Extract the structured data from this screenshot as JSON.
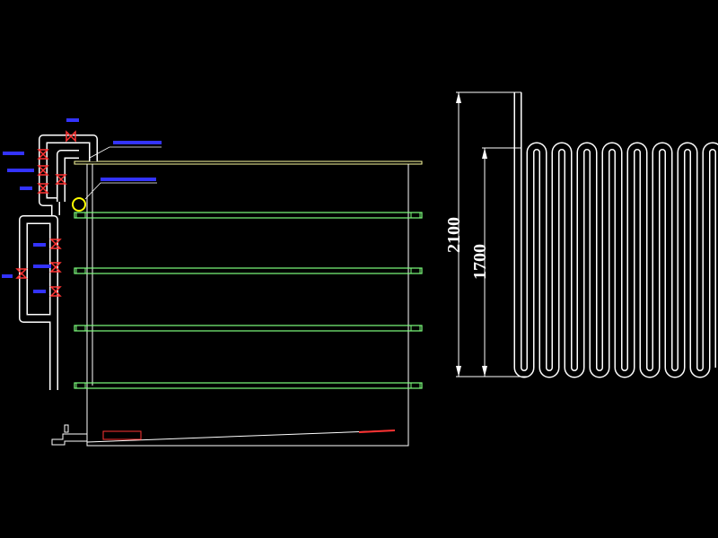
{
  "dimensions": [
    {
      "label": "2100"
    },
    {
      "label": "1700"
    }
  ]
}
